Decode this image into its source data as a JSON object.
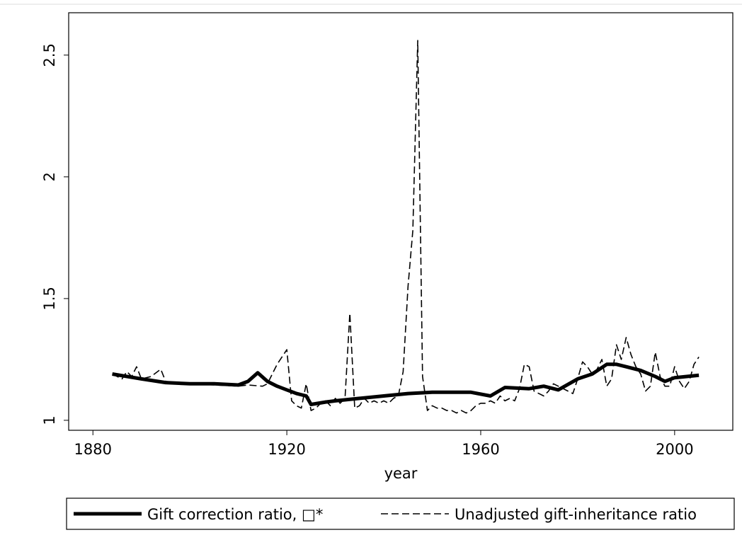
{
  "chart_data": {
    "type": "line",
    "x_label": "year",
    "xlim": [
      1875,
      2012
    ],
    "xticks": [
      1880,
      1920,
      1960,
      2000
    ],
    "ylim": [
      0.959,
      2.674
    ],
    "yticks": [
      1,
      1.5,
      2,
      2.5
    ],
    "legend": "bottom",
    "series": [
      {
        "name": "Gift correction ratio, □*",
        "color": "#000000",
        "style": "solid",
        "x": [
          1884,
          1890,
          1895,
          1900,
          1905,
          1910,
          1912,
          1914,
          1916,
          1918,
          1920,
          1922,
          1924,
          1925,
          1928,
          1930,
          1935,
          1940,
          1945,
          1950,
          1958,
          1962,
          1965,
          1970,
          1973,
          1976,
          1980,
          1983,
          1986,
          1988,
          1990,
          1993,
          1996,
          1998,
          2000,
          2005
        ],
        "values": [
          1.19,
          1.17,
          1.155,
          1.15,
          1.15,
          1.145,
          1.16,
          1.195,
          1.16,
          1.14,
          1.125,
          1.11,
          1.1,
          1.065,
          1.075,
          1.08,
          1.09,
          1.1,
          1.11,
          1.115,
          1.115,
          1.1,
          1.135,
          1.13,
          1.14,
          1.125,
          1.17,
          1.19,
          1.23,
          1.23,
          1.22,
          1.205,
          1.18,
          1.16,
          1.175,
          1.185
        ]
      },
      {
        "name": "Unadjusted gift-inheritance ratio",
        "color": "#000000",
        "style": "dashed",
        "x": [
          1884,
          1886,
          1887,
          1888,
          1889,
          1890,
          1892,
          1894,
          1895,
          1900,
          1910,
          1912,
          1915,
          1916,
          1918,
          1920,
          1921,
          1922,
          1923,
          1924,
          1925,
          1926,
          1927,
          1928,
          1929,
          1930,
          1931,
          1932,
          1933,
          1934,
          1935,
          1936,
          1937,
          1938,
          1939,
          1940,
          1941,
          1942,
          1943,
          1944,
          1945,
          1946,
          1947,
          1948,
          1949,
          1950,
          1951,
          1952,
          1953,
          1954,
          1955,
          1956,
          1957,
          1958,
          1959,
          1960,
          1961,
          1962,
          1963,
          1964,
          1965,
          1966,
          1967,
          1968,
          1969,
          1970,
          1971,
          1972,
          1973,
          1974,
          1975,
          1976,
          1977,
          1978,
          1979,
          1980,
          1981,
          1982,
          1983,
          1984,
          1985,
          1986,
          1987,
          1988,
          1989,
          1990,
          1991,
          1992,
          1993,
          1994,
          1995,
          1996,
          1997,
          1998,
          1999,
          2000,
          2001,
          2002,
          2003,
          2004,
          2005
        ],
        "values": [
          1.19,
          1.17,
          1.2,
          1.18,
          1.22,
          1.17,
          1.18,
          1.21,
          1.16,
          1.15,
          1.14,
          1.145,
          1.14,
          1.15,
          1.23,
          1.29,
          1.08,
          1.06,
          1.05,
          1.15,
          1.04,
          1.05,
          1.07,
          1.08,
          1.06,
          1.09,
          1.07,
          1.09,
          1.44,
          1.05,
          1.06,
          1.09,
          1.07,
          1.08,
          1.07,
          1.08,
          1.07,
          1.09,
          1.1,
          1.2,
          1.55,
          1.78,
          2.56,
          1.18,
          1.04,
          1.06,
          1.05,
          1.05,
          1.04,
          1.04,
          1.03,
          1.04,
          1.03,
          1.04,
          1.06,
          1.07,
          1.07,
          1.08,
          1.07,
          1.1,
          1.08,
          1.09,
          1.08,
          1.13,
          1.23,
          1.22,
          1.12,
          1.11,
          1.1,
          1.12,
          1.15,
          1.14,
          1.13,
          1.12,
          1.11,
          1.17,
          1.24,
          1.22,
          1.19,
          1.21,
          1.25,
          1.14,
          1.17,
          1.31,
          1.25,
          1.34,
          1.27,
          1.22,
          1.19,
          1.12,
          1.14,
          1.28,
          1.18,
          1.14,
          1.14,
          1.22,
          1.16,
          1.13,
          1.16,
          1.23,
          1.26
        ]
      }
    ]
  }
}
